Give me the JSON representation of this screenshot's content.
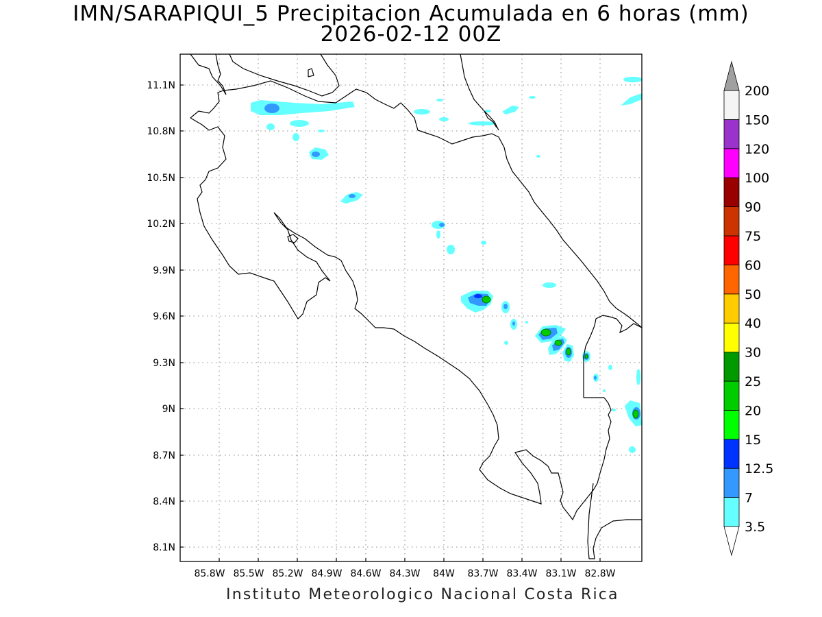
{
  "title": {
    "line1": "IMN/SARAPIQUI_5 Precipitacion Acumulada en 6 horas (mm)",
    "line2": "2026-02-12 00Z"
  },
  "footer": "Instituto Meteorologico Nacional Costa Rica",
  "map": {
    "lon_range": [
      -86.03,
      -82.57
    ],
    "lat_range": [
      8.01,
      11.31
    ],
    "lon_ticks": [
      "85.8W",
      "85.5W",
      "85.2W",
      "84.9W",
      "84.6W",
      "84.3W",
      "84W",
      "83.7W",
      "83.4W",
      "83.1W",
      "82.8W"
    ],
    "lat_ticks": [
      "11.1N",
      "10.8N",
      "10.5N",
      "10.2N",
      "9.9N",
      "9.6N",
      "9.3N",
      "9N",
      "8.7N",
      "8.4N",
      "8.1N"
    ],
    "grid": true
  },
  "colorbar": {
    "levels": [
      "3.5",
      "7",
      "12.5",
      "15",
      "20",
      "25",
      "30",
      "40",
      "50",
      "60",
      "75",
      "90",
      "100",
      "120",
      "150",
      "200"
    ],
    "colors": [
      "#66ffff",
      "#3399ff",
      "#0033ff",
      "#00ff00",
      "#00cc00",
      "#009900",
      "#ffff00",
      "#ffcc00",
      "#ff6600",
      "#ff0000",
      "#cc3300",
      "#990000",
      "#ff00ff",
      "#9933cc",
      "#f5f5f5",
      "#a0a0a0"
    ]
  }
}
